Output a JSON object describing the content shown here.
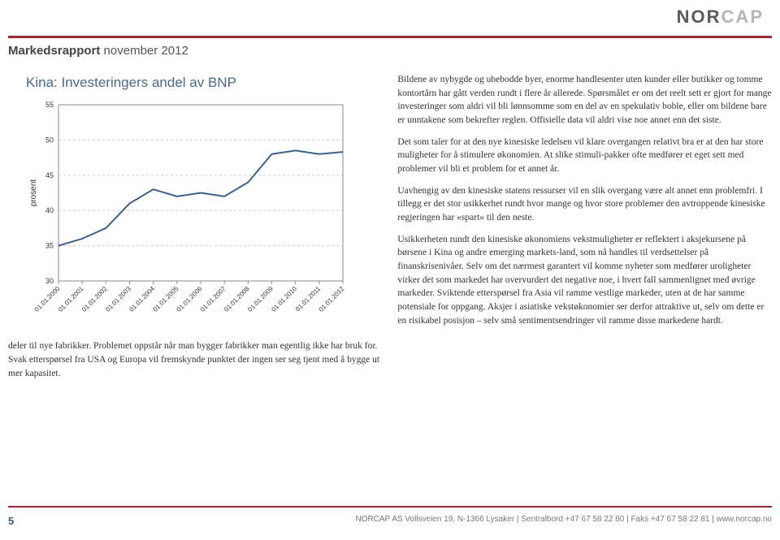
{
  "logo": {
    "part1": "NOR",
    "part2": "CAP"
  },
  "header": {
    "bold": "Markedsrapport",
    "rest": " november 2012"
  },
  "chart": {
    "title": "Kina: Investeringers andel av BNP",
    "ylabel": "prosent",
    "ylim": [
      30,
      55
    ],
    "yticks": [
      30,
      35,
      40,
      45,
      50,
      55
    ],
    "xlabels": [
      "01.01.2000",
      "01.01.2001",
      "01.01.2002",
      "01.01.2003",
      "01.01.2004",
      "01.01.2005",
      "01.01.2006",
      "01.01.2007",
      "01.01.2008",
      "01.01.2009",
      "01.01.2010",
      "01.01.2011",
      "01.01.2012"
    ],
    "values": [
      35,
      36,
      37.5,
      41,
      43,
      42,
      42.5,
      42,
      44,
      48,
      48.5,
      48,
      48.3
    ],
    "line_color": "#3e5f85",
    "line_width": 2,
    "grid_color": "#cccccc",
    "axis_color": "#888888",
    "bg": "#ffffff",
    "tick_fontsize": 9,
    "title_fontsize": 17,
    "title_color": "#4a6a8a"
  },
  "left_paragraphs": [
    "deler til nye fabrikker. Problemet oppstår når man bygger fabrikker man egentlig ikke har bruk for. Svak etterspørsel fra USA og Europa vil fremskynde punktet der ingen ser seg tjent med å bygge ut mer kapasitet."
  ],
  "right_paragraphs": [
    "Bildene av nybygde og ubebodde byer, enorme handlesenter uten kunder eller butikker og tomme kontortårn har gått verden rundt i flere år allerede. Spørsmålet er om det reelt sett er gjort for mange investeringer som aldri vil bli lønnsomme som en del av en spekulativ boble, eller om bildene bare er unntakene som bekrefter reglen. Offisielle data vil aldri vise noe annet enn det siste.",
    "Det som taler for at den nye kinesiske ledelsen vil klare overgangen relativt bra er at den har store muligheter for å stimulere økonomien. At slike stimuli-pakker ofte medfører et eget sett med problemer vil bli et problem for et annet år.",
    "Uavhengig av den kinesiske statens ressurser vil en slik overgang være alt annet enn problemfri. I tillegg er det stor usikkerhet rundt hvor mange og hvor store problemer den avtroppende kinesiske regjeringen har «spart» til den neste.",
    "Usikkerheten rundt den kinesiske økonomiens vekstmuligheter er reflektert i aksjekursene på børsene i Kina og andre emerging markets-land, som nå handles til verdsettelser på finanskrisenivåer. Selv om det nærmest garantert vil komme nyheter som medfører uroligheter virker det som markedet har overvurdert det negative noe, i hvert fall sammenlignet med øvrige markeder. Sviktende etterspørsel fra Asia vil ramme vestlige markeder, uten at de har samme potensiale for oppgang. Aksjer i asiatiske vekstøkonomier ser derfor attraktive ut, selv om dette er en risikabel posisjon – selv små sentimentsendringer vil ramme disse markedene hardt."
  ],
  "footer": {
    "page": "5",
    "text": "NORCAP AS Vollsveien 19, N-1366 Lysaker | Sentralbord +47 67 58 22 80 | Faks +47 67 58 22 81 | www.norcap.no"
  },
  "colors": {
    "rule": "#972b2d",
    "text": "#333333",
    "footer_text": "#777777"
  }
}
